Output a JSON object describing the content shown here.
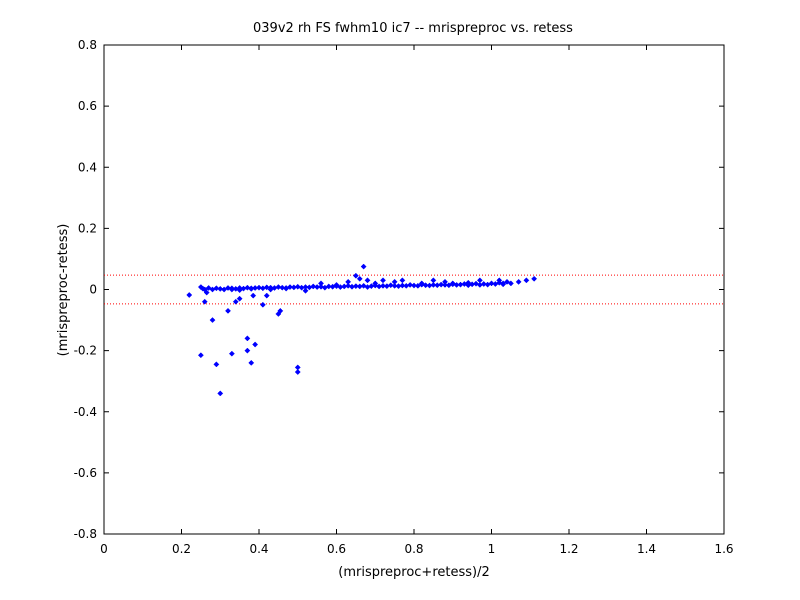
{
  "chart_data": {
    "type": "scatter",
    "title": "039v2 rh FS fwhm10 ic7 -- mrispreproc vs. retess",
    "xlabel": "(mrispreproc+retess)/2",
    "ylabel": "(mrispreproc-retess)",
    "xlim": [
      0,
      1.6
    ],
    "ylim": [
      -0.8,
      0.8
    ],
    "xticks": [
      0,
      0.2,
      0.4,
      0.6,
      0.8,
      1,
      1.2,
      1.4,
      1.6
    ],
    "xtick_labels": [
      "0",
      "0.2",
      "0.4",
      "0.6",
      "0.8",
      "1",
      "1.2",
      "1.4",
      "1.6"
    ],
    "yticks": [
      -0.8,
      -0.6,
      -0.4,
      -0.2,
      0,
      0.2,
      0.4,
      0.6,
      0.8
    ],
    "ytick_labels": [
      "-0.8",
      "-0.6",
      "-0.4",
      "-0.2",
      "0",
      "0.2",
      "0.4",
      "0.6",
      "0.8"
    ],
    "grid": false,
    "reference_lines": [
      {
        "y": 0.047,
        "color": "#ff0000",
        "style": "dotted"
      },
      {
        "y": -0.047,
        "color": "#ff0000",
        "style": "dotted"
      }
    ],
    "series": [
      {
        "color": "#0000ff",
        "marker": "diamond",
        "x": [
          0.22,
          0.25,
          0.26,
          0.265,
          0.28,
          0.29,
          0.3,
          0.32,
          0.33,
          0.34,
          0.35,
          0.37,
          0.37,
          0.38,
          0.385,
          0.39,
          0.41,
          0.42,
          0.45,
          0.455,
          0.5,
          0.5,
          0.25,
          0.255,
          0.26,
          0.27,
          0.28,
          0.29,
          0.3,
          0.31,
          0.32,
          0.33,
          0.34,
          0.35,
          0.36,
          0.37,
          0.38,
          0.39,
          0.4,
          0.41,
          0.42,
          0.43,
          0.44,
          0.45,
          0.46,
          0.47,
          0.48,
          0.49,
          0.5,
          0.51,
          0.52,
          0.53,
          0.54,
          0.55,
          0.56,
          0.57,
          0.58,
          0.59,
          0.6,
          0.61,
          0.62,
          0.63,
          0.64,
          0.65,
          0.66,
          0.67,
          0.68,
          0.69,
          0.7,
          0.71,
          0.72,
          0.73,
          0.74,
          0.75,
          0.76,
          0.77,
          0.78,
          0.79,
          0.8,
          0.81,
          0.82,
          0.83,
          0.84,
          0.85,
          0.86,
          0.87,
          0.88,
          0.89,
          0.9,
          0.91,
          0.92,
          0.93,
          0.94,
          0.95,
          0.96,
          0.97,
          0.98,
          0.99,
          1.0,
          1.01,
          1.02,
          1.03,
          1.04,
          1.05,
          1.07,
          1.09,
          1.11,
          0.33,
          0.35,
          0.38,
          0.43,
          0.47,
          0.52,
          0.56,
          0.6,
          0.63,
          0.65,
          0.66,
          0.67,
          0.68,
          0.7,
          0.72,
          0.75,
          0.77,
          0.82,
          0.85,
          0.88,
          0.9,
          0.94,
          0.97,
          1.02,
          1.03
        ],
        "y": [
          -0.018,
          -0.215,
          -0.04,
          -0.01,
          -0.1,
          -0.245,
          -0.34,
          -0.07,
          -0.21,
          -0.04,
          -0.03,
          -0.16,
          -0.2,
          -0.24,
          -0.02,
          -0.18,
          -0.05,
          -0.02,
          -0.08,
          -0.07,
          -0.255,
          -0.27,
          0.008,
          0.003,
          0.0,
          0.005,
          0.0,
          0.004,
          0.002,
          0.0,
          0.005,
          0.004,
          0.002,
          0.005,
          0.003,
          0.006,
          0.004,
          0.005,
          0.006,
          0.004,
          0.007,
          0.006,
          0.005,
          0.008,
          0.006,
          0.005,
          0.008,
          0.007,
          0.009,
          0.006,
          0.008,
          0.007,
          0.01,
          0.008,
          0.009,
          0.006,
          0.01,
          0.009,
          0.011,
          0.008,
          0.01,
          0.012,
          0.009,
          0.011,
          0.01,
          0.012,
          0.008,
          0.011,
          0.013,
          0.01,
          0.012,
          0.011,
          0.014,
          0.012,
          0.011,
          0.013,
          0.012,
          0.015,
          0.013,
          0.012,
          0.016,
          0.014,
          0.013,
          0.015,
          0.014,
          0.016,
          0.015,
          0.014,
          0.017,
          0.015,
          0.016,
          0.018,
          0.014,
          0.017,
          0.019,
          0.015,
          0.018,
          0.016,
          0.02,
          0.018,
          0.022,
          0.017,
          0.025,
          0.02,
          0.025,
          0.03,
          0.035,
          0.0,
          -0.002,
          0.002,
          0.0,
          0.003,
          -0.004,
          0.02,
          0.015,
          0.025,
          0.045,
          0.035,
          0.075,
          0.03,
          0.02,
          0.03,
          0.025,
          0.03,
          0.02,
          0.03,
          0.025,
          0.02,
          0.022,
          0.03,
          0.03,
          0.02
        ]
      }
    ]
  }
}
